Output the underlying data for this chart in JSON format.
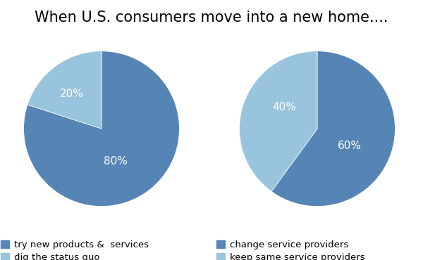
{
  "title": "When U.S. consumers move into a new home....",
  "title_fontsize": 15,
  "background_color": "#ffffff",
  "pie1": {
    "values": [
      80,
      20
    ],
    "colors": [
      "#5585b5",
      "#99c4dd"
    ],
    "labels": [
      "80%",
      "20%"
    ],
    "startangle": 90,
    "legend": [
      "try new products &  services",
      "dig the status quo"
    ]
  },
  "pie2": {
    "values": [
      60,
      40
    ],
    "colors": [
      "#5585b5",
      "#99c4dd"
    ],
    "labels": [
      "60%",
      "40%"
    ],
    "startangle": 90,
    "legend": [
      "change service providers",
      "keep same service providers"
    ]
  },
  "label_fontsize": 11,
  "legend_fontsize": 9.5,
  "legend_marker_color1": "#5585b5",
  "legend_marker_color2": "#99c4dd"
}
